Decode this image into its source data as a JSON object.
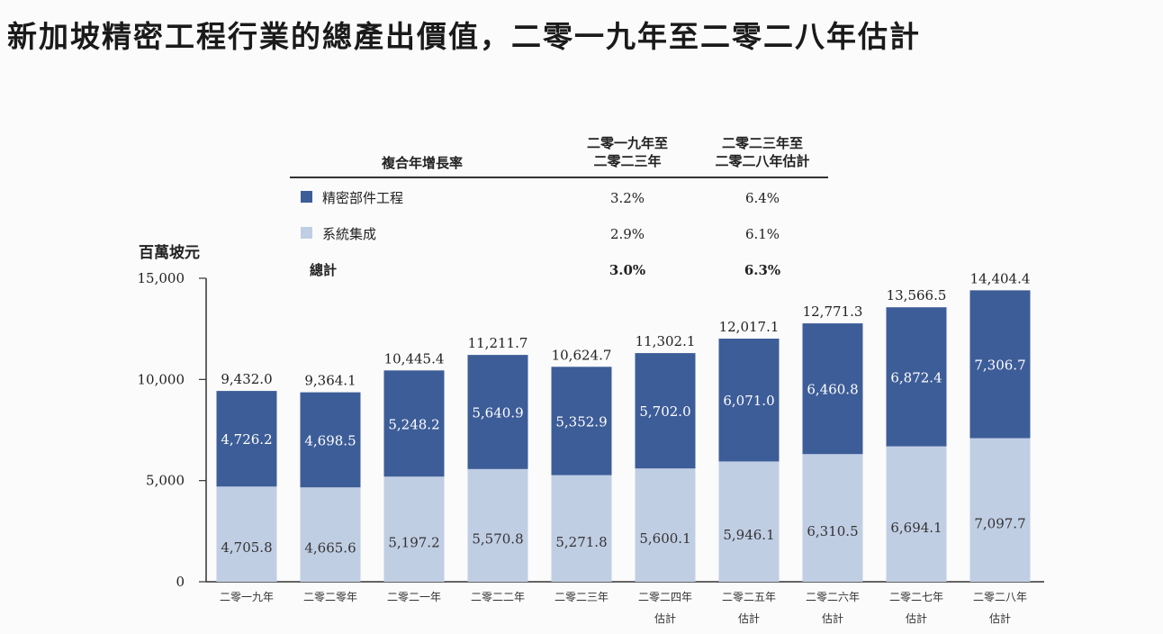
{
  "title": "新加坡精密工程行業的總產出價值，二零一九年至二零二八年估計",
  "legend_table": {
    "header": "複合年增長率",
    "col1": [
      "二零一九年至",
      "二零二三年"
    ],
    "col2": [
      "二零二三年至",
      "二零二八年估計"
    ],
    "rows": [
      {
        "label": "精密部件工程",
        "v1": "3.2%",
        "v2": "6.4%",
        "color": "#3d5d98"
      },
      {
        "label": "系統集成",
        "v1": "2.9%",
        "v2": "6.1%",
        "color": "#c0cee4"
      },
      {
        "label": "總計",
        "v1": "3.0%",
        "v2": "6.3%"
      }
    ]
  },
  "chart_data": {
    "type": "bar",
    "stacked": true,
    "title": "新加坡精密工程行業的總產出價值，二零一九年至二零二八年估計",
    "ylabel": "百萬坡元",
    "ylim": [
      0,
      15000
    ],
    "yticks": [
      0,
      5000,
      10000,
      15000
    ],
    "ytick_labels": [
      "0",
      "5,000",
      "10,000",
      "15,000"
    ],
    "categories": [
      [
        "二零一九年"
      ],
      [
        "二零二零年"
      ],
      [
        "二零二一年"
      ],
      [
        "二零二二年"
      ],
      [
        "二零二三年"
      ],
      [
        "二零二四年",
        "估計"
      ],
      [
        "二零二五年",
        "估計"
      ],
      [
        "二零二六年",
        "估計"
      ],
      [
        "二零二七年",
        "估計"
      ],
      [
        "二零二八年",
        "估計"
      ]
    ],
    "series": [
      {
        "name": "系統集成",
        "color": "#c0cee4",
        "values": [
          4705.8,
          4665.6,
          5197.2,
          5570.8,
          5271.8,
          5600.1,
          5946.1,
          6310.5,
          6694.1,
          7097.7
        ],
        "labels": [
          "4,705.8",
          "4,665.6",
          "5,197.2",
          "5,570.8",
          "5,271.8",
          "5,600.1",
          "5,946.1",
          "6,310.5",
          "6,694.1",
          "7,097.7"
        ]
      },
      {
        "name": "精密部件工程",
        "color": "#3d5d98",
        "values": [
          4726.2,
          4698.5,
          5248.2,
          5640.9,
          5352.9,
          5702.0,
          6071.0,
          6460.8,
          6872.4,
          7306.7
        ],
        "labels": [
          "4,726.2",
          "4,698.5",
          "5,248.2",
          "5,640.9",
          "5,352.9",
          "5,702.0",
          "6,071.0",
          "6,460.8",
          "6,872.4",
          "7,306.7"
        ]
      }
    ],
    "totals": [
      9432.0,
      9364.1,
      10445.4,
      11211.7,
      10624.7,
      11302.1,
      12017.1,
      12771.3,
      13566.5,
      14404.4
    ],
    "total_labels": [
      "9,432.0",
      "9,364.1",
      "10,445.4",
      "11,211.7",
      "10,624.7",
      "11,302.1",
      "12,017.1",
      "12,771.3",
      "13,566.5",
      "14,404.4"
    ],
    "grid": false
  }
}
